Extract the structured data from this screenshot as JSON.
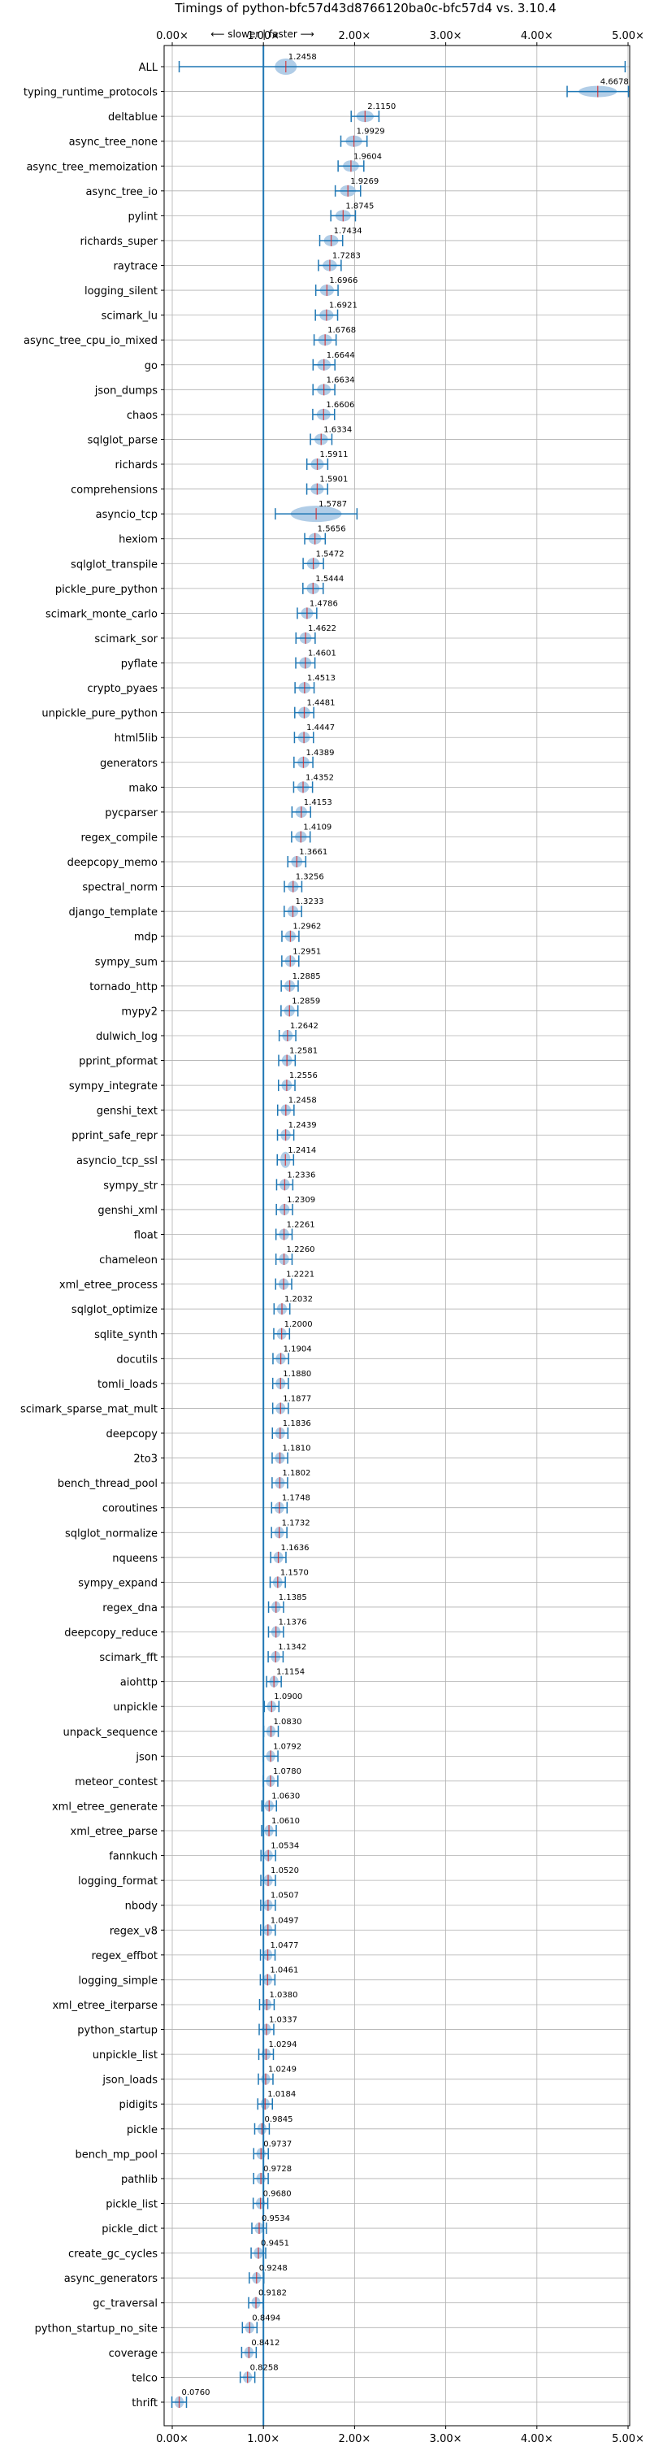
{
  "chart_data": {
    "type": "violin",
    "title": "Timings of python-bfc57d43d8766120ba0c-bfc57d4 vs. 3.10.4",
    "direction_label": "⟵ slower | faster ⟶",
    "xlim": [
      0,
      5.0
    ],
    "xticks": [
      0,
      1,
      2,
      3,
      4,
      5
    ],
    "xtick_labels": [
      "0.00×",
      "1.00×",
      "2.00×",
      "3.00×",
      "4.00×",
      "5.00×"
    ],
    "reference_line": 1.0,
    "grid": true,
    "colors": {
      "violin": "#a8c8e4",
      "line": "#1f77b4",
      "median": "#d62728",
      "grid": "#b0b0b0"
    },
    "benchmarks": [
      {
        "name": "ALL",
        "value": 1.2458
      },
      {
        "name": "typing_runtime_protocols",
        "value": 4.6678
      },
      {
        "name": "deltablue",
        "value": 2.115
      },
      {
        "name": "async_tree_none",
        "value": 1.9929
      },
      {
        "name": "async_tree_memoization",
        "value": 1.9604
      },
      {
        "name": "async_tree_io",
        "value": 1.9269
      },
      {
        "name": "pylint",
        "value": 1.8745
      },
      {
        "name": "richards_super",
        "value": 1.7434
      },
      {
        "name": "raytrace",
        "value": 1.7283
      },
      {
        "name": "logging_silent",
        "value": 1.6966
      },
      {
        "name": "scimark_lu",
        "value": 1.6921
      },
      {
        "name": "async_tree_cpu_io_mixed",
        "value": 1.6768
      },
      {
        "name": "go",
        "value": 1.6644
      },
      {
        "name": "json_dumps",
        "value": 1.6634
      },
      {
        "name": "chaos",
        "value": 1.6606
      },
      {
        "name": "sqlglot_parse",
        "value": 1.6334
      },
      {
        "name": "richards",
        "value": 1.5911
      },
      {
        "name": "comprehensions",
        "value": 1.5901
      },
      {
        "name": "asyncio_tcp",
        "value": 1.5787
      },
      {
        "name": "hexiom",
        "value": 1.5656
      },
      {
        "name": "sqlglot_transpile",
        "value": 1.5472
      },
      {
        "name": "pickle_pure_python",
        "value": 1.5444
      },
      {
        "name": "scimark_monte_carlo",
        "value": 1.4786
      },
      {
        "name": "scimark_sor",
        "value": 1.4622
      },
      {
        "name": "pyflate",
        "value": 1.4601
      },
      {
        "name": "crypto_pyaes",
        "value": 1.4513
      },
      {
        "name": "unpickle_pure_python",
        "value": 1.4481
      },
      {
        "name": "html5lib",
        "value": 1.4447
      },
      {
        "name": "generators",
        "value": 1.4389
      },
      {
        "name": "mako",
        "value": 1.4352
      },
      {
        "name": "pycparser",
        "value": 1.4153
      },
      {
        "name": "regex_compile",
        "value": 1.4109
      },
      {
        "name": "deepcopy_memo",
        "value": 1.3661
      },
      {
        "name": "spectral_norm",
        "value": 1.3256
      },
      {
        "name": "django_template",
        "value": 1.3233
      },
      {
        "name": "mdp",
        "value": 1.2962
      },
      {
        "name": "sympy_sum",
        "value": 1.2951
      },
      {
        "name": "tornado_http",
        "value": 1.2885
      },
      {
        "name": "mypy2",
        "value": 1.2859
      },
      {
        "name": "dulwich_log",
        "value": 1.2642
      },
      {
        "name": "pprint_pformat",
        "value": 1.2581
      },
      {
        "name": "sympy_integrate",
        "value": 1.2556
      },
      {
        "name": "genshi_text",
        "value": 1.2458
      },
      {
        "name": "pprint_safe_repr",
        "value": 1.2439
      },
      {
        "name": "asyncio_tcp_ssl",
        "value": 1.2414
      },
      {
        "name": "sympy_str",
        "value": 1.2336
      },
      {
        "name": "genshi_xml",
        "value": 1.2309
      },
      {
        "name": "float",
        "value": 1.2261
      },
      {
        "name": "chameleon",
        "value": 1.226
      },
      {
        "name": "xml_etree_process",
        "value": 1.2221
      },
      {
        "name": "sqlglot_optimize",
        "value": 1.2032
      },
      {
        "name": "sqlite_synth",
        "value": 1.2
      },
      {
        "name": "docutils",
        "value": 1.1904
      },
      {
        "name": "tomli_loads",
        "value": 1.188
      },
      {
        "name": "scimark_sparse_mat_mult",
        "value": 1.1877
      },
      {
        "name": "deepcopy",
        "value": 1.1836
      },
      {
        "name": "2to3",
        "value": 1.181
      },
      {
        "name": "bench_thread_pool",
        "value": 1.1802
      },
      {
        "name": "coroutines",
        "value": 1.1748
      },
      {
        "name": "sqlglot_normalize",
        "value": 1.1732
      },
      {
        "name": "nqueens",
        "value": 1.1636
      },
      {
        "name": "sympy_expand",
        "value": 1.157
      },
      {
        "name": "regex_dna",
        "value": 1.1385
      },
      {
        "name": "deepcopy_reduce",
        "value": 1.1376
      },
      {
        "name": "scimark_fft",
        "value": 1.1342
      },
      {
        "name": "aiohttp",
        "value": 1.1154
      },
      {
        "name": "unpickle",
        "value": 1.09
      },
      {
        "name": "unpack_sequence",
        "value": 1.083
      },
      {
        "name": "json",
        "value": 1.0792
      },
      {
        "name": "meteor_contest",
        "value": 1.078
      },
      {
        "name": "xml_etree_generate",
        "value": 1.063
      },
      {
        "name": "xml_etree_parse",
        "value": 1.061
      },
      {
        "name": "fannkuch",
        "value": 1.0534
      },
      {
        "name": "logging_format",
        "value": 1.052
      },
      {
        "name": "nbody",
        "value": 1.0507
      },
      {
        "name": "regex_v8",
        "value": 1.0497
      },
      {
        "name": "regex_effbot",
        "value": 1.0477
      },
      {
        "name": "logging_simple",
        "value": 1.0461
      },
      {
        "name": "xml_etree_iterparse",
        "value": 1.038
      },
      {
        "name": "python_startup",
        "value": 1.0337
      },
      {
        "name": "unpickle_list",
        "value": 1.0294
      },
      {
        "name": "json_loads",
        "value": 1.0249
      },
      {
        "name": "pidigits",
        "value": 1.0184
      },
      {
        "name": "pickle",
        "value": 0.9845
      },
      {
        "name": "bench_mp_pool",
        "value": 0.9737
      },
      {
        "name": "pathlib",
        "value": 0.9728
      },
      {
        "name": "pickle_list",
        "value": 0.968
      },
      {
        "name": "pickle_dict",
        "value": 0.9534
      },
      {
        "name": "create_gc_cycles",
        "value": 0.9451
      },
      {
        "name": "async_generators",
        "value": 0.9248
      },
      {
        "name": "gc_traversal",
        "value": 0.9182
      },
      {
        "name": "python_startup_no_site",
        "value": 0.8494
      },
      {
        "name": "coverage",
        "value": 0.8412
      },
      {
        "name": "telco",
        "value": 0.8258
      },
      {
        "name": "thrift",
        "value": 0.076
      }
    ]
  }
}
